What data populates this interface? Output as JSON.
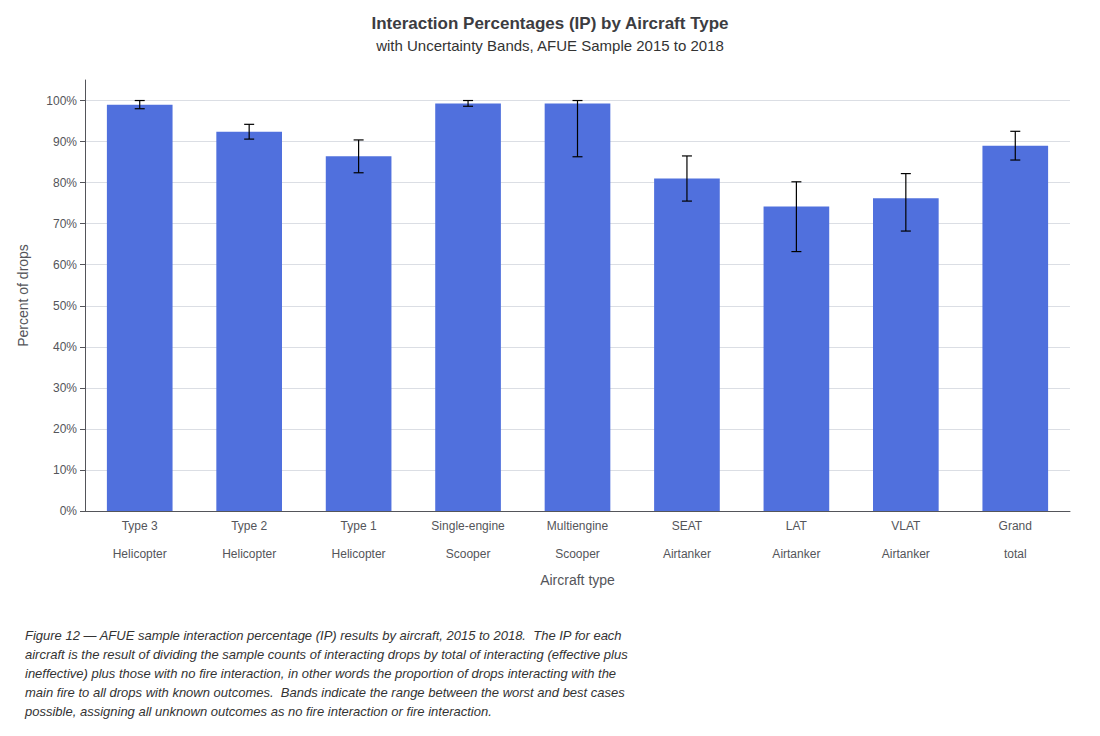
{
  "chart_data": {
    "type": "bar",
    "title": "Interaction Percentages (IP) by Aircraft Type",
    "subtitle": "with Uncertainty Bands, AFUE Sample 2015 to 2018",
    "xlabel": "Aircraft type",
    "ylabel": "Percent of drops",
    "categories": [
      "Type 3\n\nHelicopter",
      "Type 2\n\nHelicopter",
      "Type 1\n\nHelicopter",
      "Single-engine\n\nScooper",
      "Multiengine\n\nScooper",
      "SEAT\n\nAirtanker",
      "LAT\n\nAirtanker",
      "VLAT\n\nAirtanker",
      "Grand\n\ntotal"
    ],
    "values": [
      0.99,
      0.924,
      0.864,
      0.993,
      0.993,
      0.81,
      0.742,
      0.762,
      0.89
    ],
    "err_upper": [
      0.01,
      0.018,
      0.04,
      0.007,
      0.007,
      0.055,
      0.06,
      0.06,
      0.035
    ],
    "err_lower": [
      0.01,
      0.018,
      0.04,
      0.007,
      0.13,
      0.055,
      0.11,
      0.08,
      0.035
    ],
    "ylim": [
      0,
      1.05
    ],
    "yticks": [
      {
        "value": 0.0,
        "label": "0%"
      },
      {
        "value": 0.1,
        "label": "10%"
      },
      {
        "value": 0.2,
        "label": "20%"
      },
      {
        "value": 0.3,
        "label": "30%"
      },
      {
        "value": 0.4,
        "label": "40%"
      },
      {
        "value": 0.5,
        "label": "50%"
      },
      {
        "value": 0.6,
        "label": "60%"
      },
      {
        "value": 0.7,
        "label": "70%"
      },
      {
        "value": 0.8,
        "label": "80%"
      },
      {
        "value": 0.9,
        "label": "90%"
      },
      {
        "value": 1.0,
        "label": "100%"
      }
    ],
    "grid": true,
    "annotations": [
      "Figure 12 — AFUE sample interaction percentage (IP) results by aircraft, 2015 to 2018.  The IP for each\naircraft is the result of dividing the sample counts of interacting drops by total of interacting (effective plus\nineffective) plus those with no fire interaction, in other words the proportion of drops interacting with the\nmain fire to all drops with known outcomes.  Bands indicate the range between the worst and best cases\npossible, assigning all unknown outcomes as no fire interaction or fire interaction."
    ]
  }
}
